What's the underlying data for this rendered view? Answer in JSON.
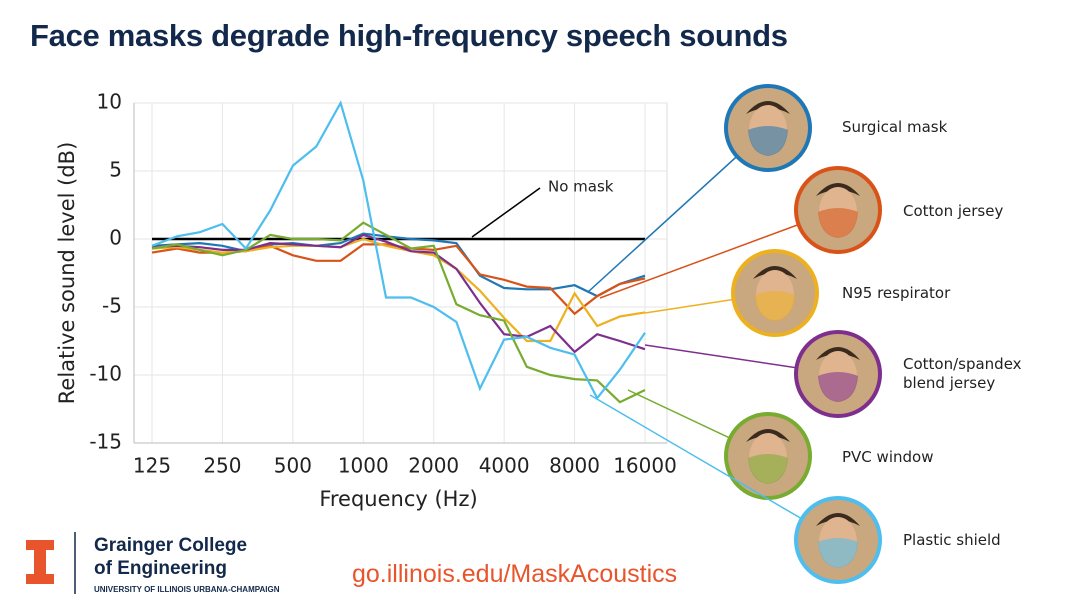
{
  "chart_data": {
    "type": "line",
    "title": "Face masks degrade high-frequency speech sounds",
    "x_label": "Frequency (Hz)",
    "y_label": "Relative sound level (dB)",
    "xscale": "log",
    "x": [
      125,
      160,
      200,
      250,
      315,
      400,
      500,
      630,
      800,
      1000,
      1250,
      1600,
      2000,
      2500,
      3150,
      4000,
      5000,
      6300,
      8000,
      10000,
      12500,
      16000
    ],
    "xlim": [
      125,
      16000
    ],
    "xticks": [
      125,
      250,
      500,
      1000,
      2000,
      4000,
      8000,
      16000
    ],
    "ylim": [
      -15,
      10
    ],
    "yticks": [
      -15,
      -10,
      -5,
      0,
      5,
      10
    ],
    "grid": true,
    "series": [
      {
        "name": "No mask",
        "color": "#000000",
        "values": [
          0,
          0,
          0,
          0,
          0,
          0,
          0,
          0,
          0,
          0,
          0,
          0,
          0,
          0,
          0,
          0,
          0,
          0,
          0,
          0,
          0,
          0
        ]
      },
      {
        "name": "Surgical mask",
        "color": "#1f77b4",
        "values": [
          -0.5,
          -0.4,
          -0.3,
          -0.5,
          -0.9,
          -0.4,
          -0.3,
          -0.5,
          -0.3,
          0.4,
          0.2,
          0,
          -0.1,
          -0.3,
          -2.7,
          -3.6,
          -3.7,
          -3.7,
          -3.4,
          -4.2,
          -3.3,
          -2.7
        ]
      },
      {
        "name": "Cotton jersey",
        "color": "#d95319",
        "values": [
          -1.0,
          -0.7,
          -1.0,
          -1.0,
          -0.9,
          -0.5,
          -1.2,
          -1.6,
          -1.6,
          -0.4,
          -0.4,
          -0.7,
          -0.8,
          -0.5,
          -2.6,
          -3.0,
          -3.5,
          -3.6,
          -5.5,
          -4.2,
          -3.3,
          -2.9
        ]
      },
      {
        "name": "N95 respirator",
        "color": "#edb120",
        "values": [
          -0.7,
          -0.6,
          -0.8,
          -1.0,
          -0.9,
          -0.6,
          -0.5,
          -0.5,
          -0.6,
          0,
          -0.5,
          -0.9,
          -1.2,
          -2.2,
          -3.8,
          -5.8,
          -7.5,
          -7.5,
          -4.0,
          -6.4,
          -5.7,
          -5.4
        ]
      },
      {
        "name": "Cotton/spandex blend jersey",
        "color": "#7e2f8e",
        "values": [
          -0.6,
          -0.5,
          -0.6,
          -0.8,
          -0.8,
          -0.3,
          -0.4,
          -0.5,
          -0.6,
          0.3,
          -0.2,
          -0.9,
          -1.0,
          -2.2,
          -4.7,
          -7.0,
          -7.2,
          -6.4,
          -8.3,
          -7.0,
          -7.5,
          -8.1
        ]
      },
      {
        "name": "PVC window",
        "color": "#77ac30",
        "values": [
          -0.7,
          -0.4,
          -0.8,
          -1.2,
          -0.8,
          0.3,
          0,
          0,
          -0.1,
          1.2,
          0.3,
          -0.7,
          -0.5,
          -4.8,
          -5.6,
          -6.0,
          -9.4,
          -10.0,
          -10.3,
          -10.4,
          -12.0,
          -11.1
        ]
      },
      {
        "name": "Plastic shield",
        "color": "#4dbeee",
        "values": [
          -0.5,
          0.2,
          0.5,
          1.1,
          -0.7,
          2.1,
          5.4,
          6.8,
          10,
          4.3,
          -4.3,
          -4.3,
          -5.0,
          -6.1,
          -11.0,
          -7.4,
          -7.2,
          -8.0,
          -8.5,
          -11.7,
          -9.6,
          -6.9
        ]
      }
    ]
  },
  "footer": {
    "college": "Grainger College of Engineering",
    "university": "UNIVERSITY OF ILLINOIS URBANA-CHAMPAIGN",
    "url": "go.illinois.edu/MaskAcoustics"
  }
}
